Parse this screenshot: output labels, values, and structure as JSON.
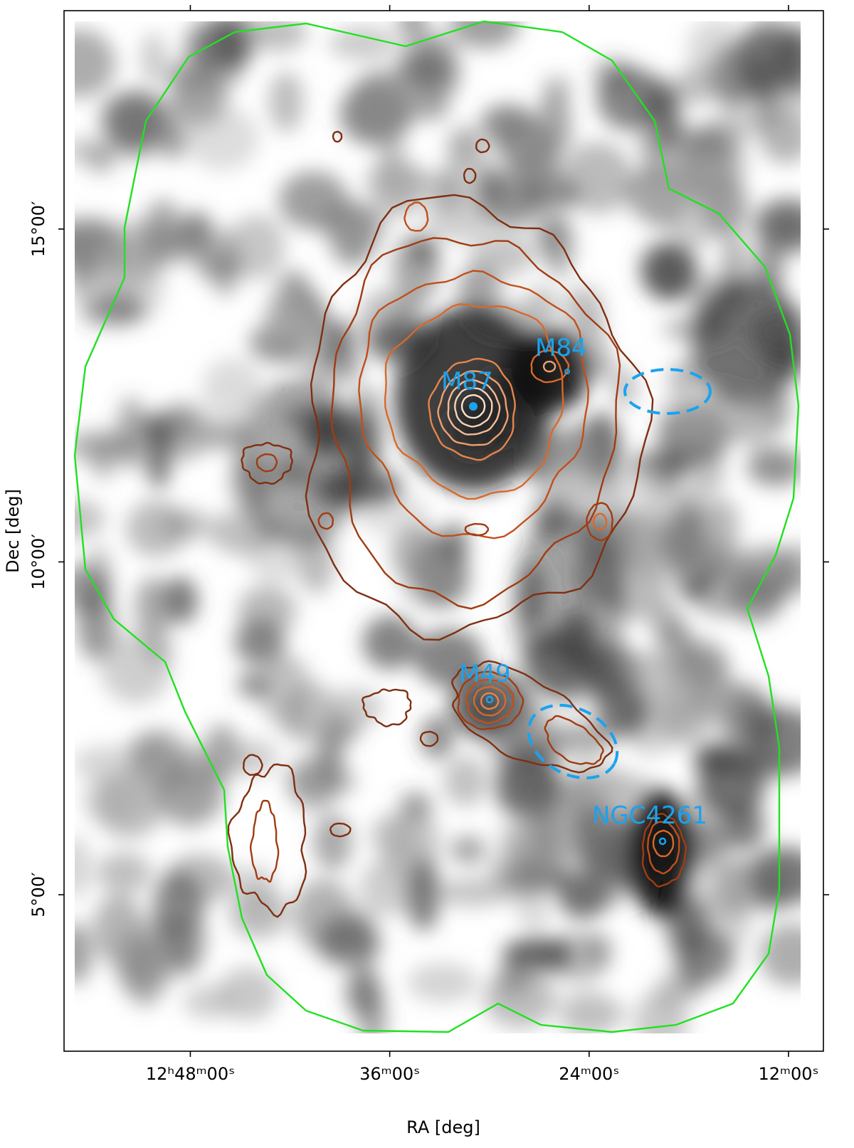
{
  "chart_data": {
    "type": "image",
    "xlabel": "RA [deg]",
    "ylabel": "Dec [deg]",
    "xlim": [
      193.9,
      182.475
    ],
    "ylim": [
      2.65,
      18.28
    ],
    "xticks": [
      {
        "value": 192,
        "label": "12ʰ48ᵐ00ˢ"
      },
      {
        "value": 189,
        "label": "36ᵐ00ˢ"
      },
      {
        "value": 186,
        "label": "24ᵐ00ˢ"
      },
      {
        "value": 183,
        "label": "12ᵐ00ˢ"
      }
    ],
    "yticks": [
      {
        "value": 5,
        "label": "5°00′"
      },
      {
        "value": 10,
        "label": "10°00′"
      },
      {
        "value": 15,
        "label": "15°00′"
      }
    ],
    "annotations": [
      "M87",
      "M84",
      "M49",
      "NGC4261"
    ]
  }
}
